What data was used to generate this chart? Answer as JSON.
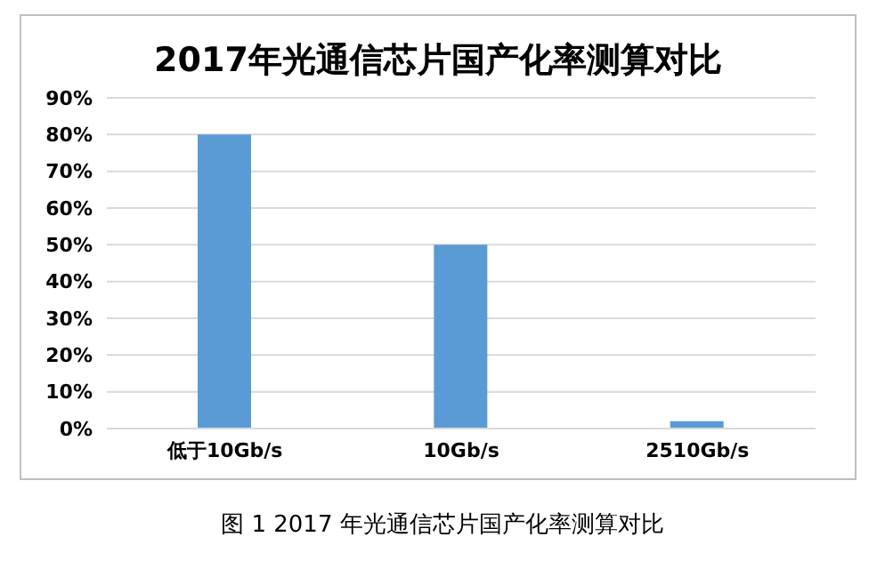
{
  "chart_data": {
    "type": "bar",
    "title": "2017年光通信芯片国产化率测算对比",
    "categories": [
      "低于10Gb/s",
      "10Gb/s",
      "2510Gb/s"
    ],
    "values": [
      80,
      50,
      2
    ],
    "color": "#5b9bd5",
    "ylim": [
      0,
      90
    ],
    "yticks": [
      {
        "value": 0,
        "label": "0%"
      },
      {
        "value": 10,
        "label": "10%"
      },
      {
        "value": 20,
        "label": "20%"
      },
      {
        "value": 30,
        "label": "30%"
      },
      {
        "value": 40,
        "label": "40%"
      },
      {
        "value": 50,
        "label": "50%"
      },
      {
        "value": 60,
        "label": "60%"
      },
      {
        "value": 70,
        "label": "70%"
      },
      {
        "value": 80,
        "label": "80%"
      },
      {
        "value": 90,
        "label": "90%"
      }
    ],
    "grid": "y",
    "annotations": [
      "图 1 2017 年光通信芯片国产化率测算对比"
    ]
  }
}
